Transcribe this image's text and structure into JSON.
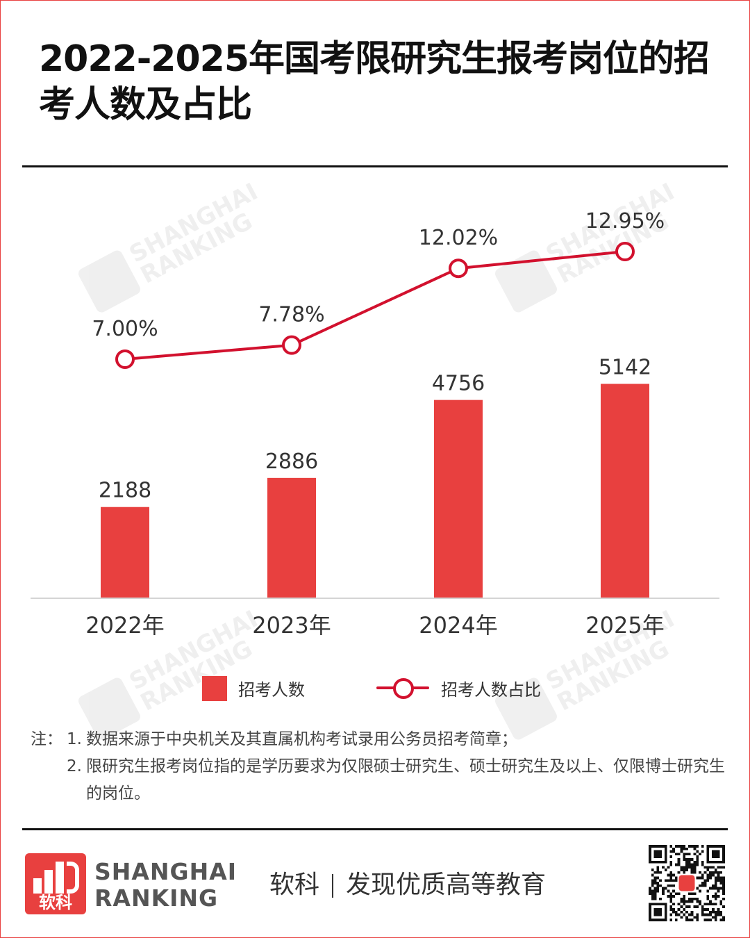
{
  "title": "2022-2025年国考限研究生报考岗位的招考人数及占比",
  "chart_data": {
    "type": "bar",
    "categories": [
      "2022年",
      "2023年",
      "2024年",
      "2025年"
    ],
    "series": [
      {
        "name": "招考人数",
        "type": "bar",
        "values": [
          2188,
          2886,
          4756,
          5142
        ],
        "labels": [
          "2188",
          "2886",
          "4756",
          "5142"
        ],
        "color": "#e8403f"
      },
      {
        "name": "招考人数占比",
        "type": "line",
        "values": [
          7.0,
          7.78,
          12.02,
          12.95
        ],
        "labels": [
          "7.00%",
          "7.78%",
          "12.02%",
          "12.95%"
        ],
        "color": "#d2112e"
      }
    ],
    "y_bar_range": [
      0,
      6000
    ],
    "y_line_range": [
      0,
      14
    ],
    "grid": false,
    "legend_position": "bottom"
  },
  "legend": {
    "bar_label": "招考人数",
    "line_label": "招考人数占比"
  },
  "notes": {
    "prefix": "注：",
    "items": [
      {
        "num": "1.",
        "text": "数据来源于中央机关及其直属机构考试录用公务员招考简章；"
      },
      {
        "num": "2.",
        "text": "限研究生报考岗位指的是学历要求为仅限硕士研究生、硕士研究生及以上、仅限博士研究生的岗位。"
      }
    ]
  },
  "footer": {
    "logo_cn": "软科",
    "brand_line1": "SHANGHAI",
    "brand_line2": "RANKING",
    "slogan_left": "软科",
    "slogan_right": "发现优质高等教育"
  },
  "watermark": {
    "line1": "SHANGHAI",
    "line2": "RANKING"
  }
}
